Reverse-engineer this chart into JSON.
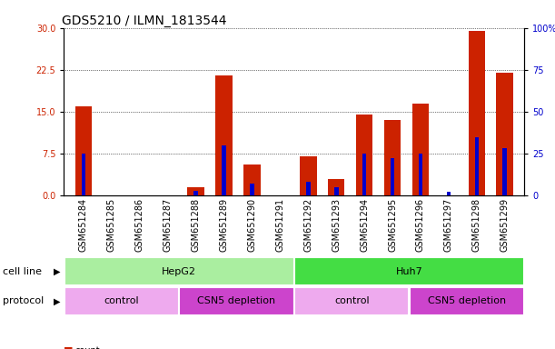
{
  "title": "GDS5210 / ILMN_1813544",
  "samples": [
    "GSM651284",
    "GSM651285",
    "GSM651286",
    "GSM651287",
    "GSM651288",
    "GSM651289",
    "GSM651290",
    "GSM651291",
    "GSM651292",
    "GSM651293",
    "GSM651294",
    "GSM651295",
    "GSM651296",
    "GSM651297",
    "GSM651298",
    "GSM651299"
  ],
  "count_values": [
    16.0,
    0.0,
    0.0,
    0.0,
    1.5,
    21.5,
    5.5,
    0.0,
    7.0,
    3.0,
    14.5,
    13.5,
    16.5,
    0.0,
    29.5,
    22.0
  ],
  "percentile_values": [
    25.0,
    0.0,
    0.0,
    0.0,
    3.0,
    30.0,
    7.0,
    0.0,
    8.0,
    5.0,
    25.0,
    22.0,
    25.0,
    2.0,
    35.0,
    28.0
  ],
  "left_ylim": [
    0,
    30
  ],
  "right_ylim": [
    0,
    100
  ],
  "left_yticks": [
    0,
    7.5,
    15,
    22.5,
    30
  ],
  "right_yticks": [
    0,
    25,
    50,
    75,
    100
  ],
  "right_yticklabels": [
    "0",
    "25",
    "50",
    "75",
    "100%"
  ],
  "bar_color": "#cc2200",
  "percentile_color": "#0000cc",
  "cell_line_color_hepg2": "#aaeea0",
  "cell_line_color_huh7": "#44dd44",
  "protocol_color_control": "#eeaaee",
  "protocol_color_csn5": "#cc44cc",
  "cell_line_groups": [
    {
      "label": "HepG2",
      "start": 0,
      "end": 7
    },
    {
      "label": "Huh7",
      "start": 8,
      "end": 15
    }
  ],
  "protocol_groups": [
    {
      "label": "control",
      "start": 0,
      "end": 3
    },
    {
      "label": "CSN5 depletion",
      "start": 4,
      "end": 7
    },
    {
      "label": "control",
      "start": 8,
      "end": 11
    },
    {
      "label": "CSN5 depletion",
      "start": 12,
      "end": 15
    }
  ],
  "plot_bg_color": "#ffffff",
  "xtick_bg_color": "#cccccc",
  "gridline_color": "#000000",
  "title_fontsize": 10,
  "tick_fontsize": 7,
  "label_fontsize": 8,
  "annot_fontsize": 8
}
